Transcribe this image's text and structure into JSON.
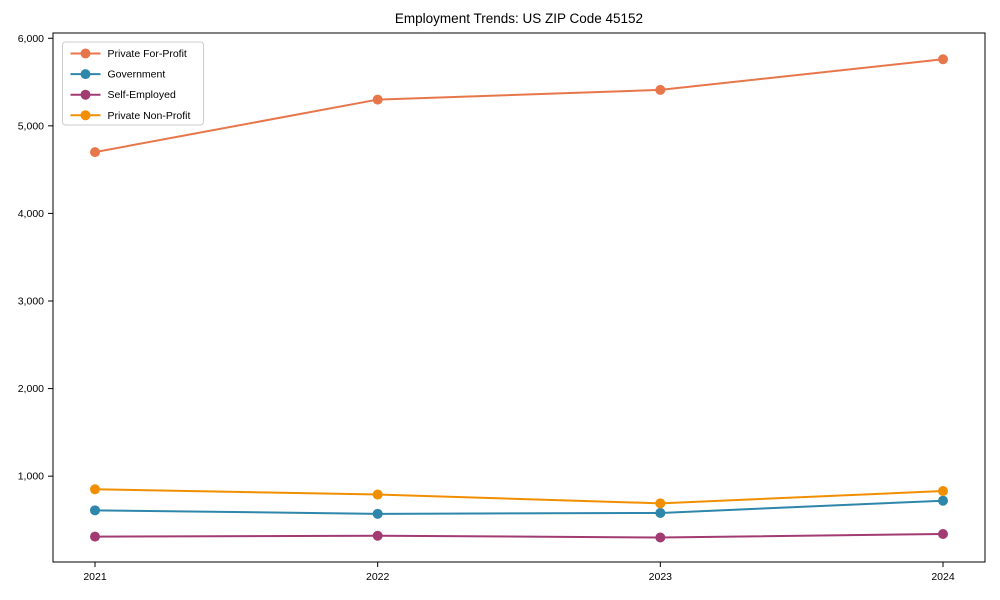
{
  "page": {
    "background_color": "#ffffff",
    "axis_color": "#000000",
    "tick_label_color": "#000000",
    "legend_border_color": "#cccccc",
    "legend_background": "#ffffff"
  },
  "chart_data": {
    "type": "line",
    "title": "Employment Trends: US ZIP Code 45152",
    "xlabel": "",
    "ylabel": "",
    "categories": [
      "2021",
      "2022",
      "2023",
      "2024"
    ],
    "series": [
      {
        "name": "Private For-Profit",
        "color": "#E8764B",
        "values": [
          4700,
          5300,
          5410,
          5760
        ]
      },
      {
        "name": "Government",
        "color": "#2E86AB",
        "values": [
          610,
          570,
          580,
          720
        ]
      },
      {
        "name": "Self-Employed",
        "color": "#A23B72",
        "values": [
          310,
          320,
          300,
          340
        ]
      },
      {
        "name": "Private Non-Profit",
        "color": "#F18F01",
        "values": [
          850,
          790,
          690,
          830
        ]
      }
    ],
    "ylim": [
      20,
      6060
    ],
    "yticks": [
      {
        "value": 1000,
        "label": "1,000"
      },
      {
        "value": 2000,
        "label": "2,000"
      },
      {
        "value": 3000,
        "label": "3,000"
      },
      {
        "value": 4000,
        "label": "4,000"
      },
      {
        "value": 5000,
        "label": "5,000"
      },
      {
        "value": 6000,
        "label": "6,000"
      }
    ],
    "grid": false,
    "legend_position": "upper-left",
    "marker": "circle",
    "line_width": 2,
    "marker_radius": 5
  }
}
